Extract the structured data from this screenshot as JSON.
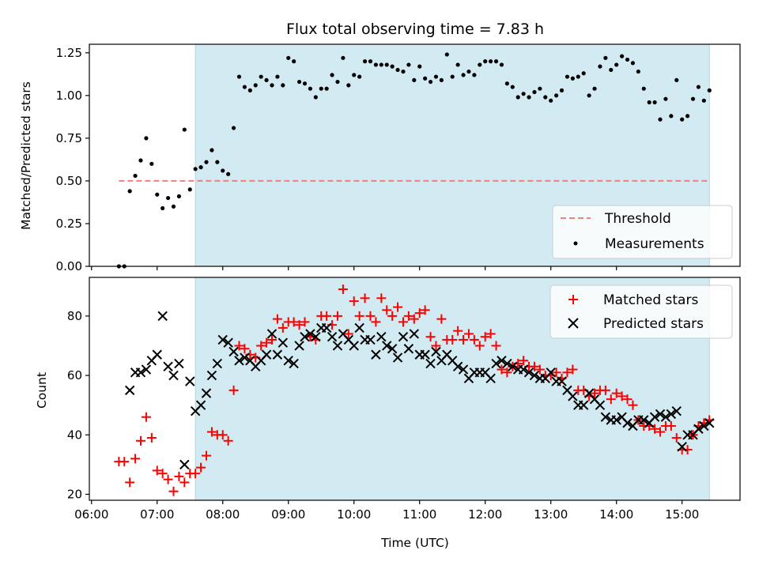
{
  "chart_data": {
    "title": "Flux total observing time = 7.83 h",
    "xlabel": "Time (UTC)",
    "x_ticks": [
      "06:00",
      "07:00",
      "08:00",
      "09:00",
      "10:00",
      "11:00",
      "12:00",
      "13:00",
      "14:00",
      "15:00"
    ],
    "x_domain": [
      "05:58",
      "15:53"
    ],
    "observing_window": [
      "07:35",
      "15:25"
    ],
    "colors": {
      "window": "#add8e6",
      "threshold": "#f08080",
      "measurements": "#000000",
      "matched": "#ff0000",
      "predicted": "#000000"
    },
    "panels": [
      {
        "type": "scatter",
        "ylabel": "Matched/Predicted stars",
        "ylim": [
          0,
          1.3
        ],
        "y_ticks": [
          "0.00",
          "0.25",
          "0.50",
          "0.75",
          "1.00",
          "1.25"
        ],
        "legend_position": "lower-right",
        "threshold": {
          "name": "Threshold",
          "value": 0.5,
          "x_range": [
            "06:25",
            "15:25"
          ]
        },
        "series": [
          {
            "name": "Measurements",
            "marker": "dot",
            "x": [
              "06:25",
              "06:30",
              "06:35",
              "06:40",
              "06:45",
              "06:50",
              "06:55",
              "07:00",
              "07:05",
              "07:10",
              "07:15",
              "07:20",
              "07:25",
              "07:30",
              "07:35",
              "07:40",
              "07:45",
              "07:50",
              "07:55",
              "08:00",
              "08:05",
              "08:10",
              "08:15",
              "08:20",
              "08:25",
              "08:30",
              "08:35",
              "08:40",
              "08:45",
              "08:50",
              "08:55",
              "09:00",
              "09:05",
              "09:10",
              "09:15",
              "09:20",
              "09:25",
              "09:30",
              "09:35",
              "09:40",
              "09:45",
              "09:50",
              "09:55",
              "10:00",
              "10:05",
              "10:10",
              "10:15",
              "10:20",
              "10:25",
              "10:30",
              "10:35",
              "10:40",
              "10:45",
              "10:50",
              "10:55",
              "11:00",
              "11:05",
              "11:10",
              "11:15",
              "11:20",
              "11:25",
              "11:30",
              "11:35",
              "11:40",
              "11:45",
              "11:50",
              "11:55",
              "12:00",
              "12:05",
              "12:10",
              "12:15",
              "12:20",
              "12:25",
              "12:30",
              "12:35",
              "12:40",
              "12:45",
              "12:50",
              "12:55",
              "13:00",
              "13:05",
              "13:10",
              "13:15",
              "13:20",
              "13:25",
              "13:30",
              "13:35",
              "13:40",
              "13:45",
              "13:50",
              "13:55",
              "14:00",
              "14:05",
              "14:10",
              "14:15",
              "14:20",
              "14:25",
              "14:30",
              "14:35",
              "14:40",
              "14:45",
              "14:50",
              "14:55",
              "15:00",
              "15:05",
              "15:10",
              "15:15",
              "15:20",
              "15:25"
            ],
            "y": [
              0.0,
              0.0,
              0.44,
              0.53,
              0.62,
              0.75,
              0.6,
              0.42,
              0.34,
              0.4,
              0.35,
              0.41,
              0.8,
              0.45,
              0.57,
              0.58,
              0.61,
              0.68,
              0.61,
              0.56,
              0.54,
              0.81,
              1.11,
              1.05,
              1.03,
              1.06,
              1.11,
              1.09,
              1.06,
              1.11,
              1.06,
              1.22,
              1.2,
              1.08,
              1.07,
              1.04,
              0.99,
              1.04,
              1.04,
              1.12,
              1.08,
              1.22,
              1.06,
              1.12,
              1.11,
              1.2,
              1.2,
              1.18,
              1.18,
              1.18,
              1.17,
              1.15,
              1.14,
              1.18,
              1.09,
              1.17,
              1.1,
              1.08,
              1.11,
              1.09,
              1.24,
              1.11,
              1.18,
              1.12,
              1.14,
              1.12,
              1.18,
              1.2,
              1.2,
              1.2,
              1.18,
              1.07,
              1.05,
              0.99,
              1.01,
              0.99,
              1.02,
              1.04,
              0.99,
              0.97,
              1.0,
              1.03,
              1.11,
              1.1,
              1.11,
              1.13,
              1.0,
              1.04,
              1.17,
              1.22,
              1.15,
              1.18,
              1.23,
              1.21,
              1.19,
              1.14,
              1.04,
              0.96,
              0.96,
              0.86,
              0.98,
              0.88,
              1.09,
              0.86,
              0.88,
              0.98,
              1.05,
              0.97,
              1.03
            ]
          }
        ]
      },
      {
        "type": "scatter",
        "ylabel": "Count",
        "ylim": [
          18,
          93
        ],
        "y_ticks": [
          "20",
          "40",
          "60",
          "80"
        ],
        "legend_position": "upper-right",
        "series": [
          {
            "name": "Matched stars",
            "marker": "plus",
            "x": [
              "06:25",
              "06:30",
              "06:35",
              "06:40",
              "06:45",
              "06:50",
              "06:55",
              "07:00",
              "07:05",
              "07:10",
              "07:15",
              "07:20",
              "07:25",
              "07:30",
              "07:35",
              "07:40",
              "07:45",
              "07:50",
              "07:55",
              "08:00",
              "08:05",
              "08:10",
              "08:15",
              "08:20",
              "08:25",
              "08:30",
              "08:35",
              "08:40",
              "08:45",
              "08:50",
              "08:55",
              "09:00",
              "09:05",
              "09:10",
              "09:15",
              "09:20",
              "09:25",
              "09:30",
              "09:35",
              "09:40",
              "09:45",
              "09:50",
              "09:55",
              "10:00",
              "10:05",
              "10:10",
              "10:15",
              "10:20",
              "10:25",
              "10:30",
              "10:35",
              "10:40",
              "10:45",
              "10:50",
              "10:55",
              "11:00",
              "11:05",
              "11:10",
              "11:15",
              "11:20",
              "11:25",
              "11:30",
              "11:35",
              "11:40",
              "11:45",
              "11:50",
              "11:55",
              "12:00",
              "12:05",
              "12:10",
              "12:15",
              "12:20",
              "12:25",
              "12:30",
              "12:35",
              "12:40",
              "12:45",
              "12:50",
              "12:55",
              "13:00",
              "13:05",
              "13:10",
              "13:15",
              "13:20",
              "13:25",
              "13:30",
              "13:35",
              "13:40",
              "13:45",
              "13:50",
              "13:55",
              "14:00",
              "14:05",
              "14:10",
              "14:15",
              "14:20",
              "14:25",
              "14:30",
              "14:35",
              "14:40",
              "14:45",
              "14:50",
              "14:55",
              "15:00",
              "15:05",
              "15:10",
              "15:15",
              "15:20",
              "15:25"
            ],
            "y": [
              31,
              31,
              24,
              32,
              38,
              46,
              39,
              28,
              27,
              25,
              21,
              26,
              24,
              27,
              27,
              29,
              33,
              41,
              40,
              40,
              38,
              55,
              70,
              69,
              67,
              66,
              70,
              71,
              72,
              79,
              76,
              78,
              78,
              77,
              78,
              73,
              72,
              80,
              80,
              77,
              80,
              89,
              74,
              85,
              80,
              86,
              80,
              78,
              86,
              82,
              80,
              83,
              78,
              80,
              79,
              81,
              82,
              73,
              70,
              79,
              72,
              72,
              75,
              72,
              74,
              72,
              70,
              73,
              74,
              70,
              62,
              61,
              63,
              64,
              65,
              63,
              63,
              62,
              60,
              60,
              61,
              59,
              61,
              62,
              55,
              55,
              53,
              54,
              55,
              55,
              52,
              54,
              53,
              52,
              50,
              45,
              43,
              43,
              42,
              41,
              43,
              43,
              39,
              35,
              35,
              40,
              43,
              44,
              45
            ]
          },
          {
            "name": "Predicted stars",
            "marker": "x",
            "x": [
              "06:35",
              "06:40",
              "06:45",
              "06:50",
              "06:55",
              "07:00",
              "07:05",
              "07:10",
              "07:15",
              "07:20",
              "07:25",
              "07:30",
              "07:35",
              "07:40",
              "07:45",
              "07:50",
              "07:55",
              "08:00",
              "08:05",
              "08:10",
              "08:15",
              "08:20",
              "08:25",
              "08:30",
              "08:35",
              "08:40",
              "08:45",
              "08:50",
              "08:55",
              "09:00",
              "09:05",
              "09:10",
              "09:15",
              "09:20",
              "09:25",
              "09:30",
              "09:35",
              "09:40",
              "09:45",
              "09:50",
              "09:55",
              "10:00",
              "10:05",
              "10:10",
              "10:15",
              "10:20",
              "10:25",
              "10:30",
              "10:35",
              "10:40",
              "10:45",
              "10:50",
              "10:55",
              "11:00",
              "11:05",
              "11:10",
              "11:15",
              "11:20",
              "11:25",
              "11:30",
              "11:35",
              "11:40",
              "11:45",
              "11:50",
              "11:55",
              "12:00",
              "12:05",
              "12:10",
              "12:15",
              "12:20",
              "12:25",
              "12:30",
              "12:35",
              "12:40",
              "12:45",
              "12:50",
              "12:55",
              "13:00",
              "13:05",
              "13:10",
              "13:15",
              "13:20",
              "13:25",
              "13:30",
              "13:35",
              "13:40",
              "13:45",
              "13:50",
              "13:55",
              "14:00",
              "14:05",
              "14:10",
              "14:15",
              "14:20",
              "14:25",
              "14:30",
              "14:35",
              "14:40",
              "14:45",
              "14:50",
              "14:55",
              "15:00",
              "15:05",
              "15:10",
              "15:15",
              "15:20",
              "15:25"
            ],
            "y": [
              55,
              61,
              61,
              62,
              65,
              67,
              80,
              63,
              60,
              64,
              30,
              58,
              48,
              50,
              54,
              60,
              64,
              72,
              71,
              68,
              65,
              66,
              65,
              63,
              65,
              67,
              74,
              67,
              71,
              65,
              64,
              70,
              73,
              74,
              73,
              76,
              76,
              73,
              70,
              74,
              72,
              70,
              76,
              72,
              72,
              67,
              73,
              70,
              69,
              66,
              73,
              69,
              74,
              67,
              67,
              64,
              68,
              65,
              67,
              65,
              63,
              62,
              59,
              61,
              61,
              61,
              59,
              64,
              65,
              64,
              63,
              62,
              62,
              61,
              60,
              59,
              59,
              61,
              58,
              58,
              55,
              53,
              50,
              50,
              54,
              52,
              50,
              46,
              45,
              45,
              46,
              44,
              43,
              45,
              45,
              44,
              46,
              47,
              46,
              47,
              48,
              36,
              40,
              40,
              42,
              43,
              44
            ]
          }
        ]
      }
    ]
  }
}
